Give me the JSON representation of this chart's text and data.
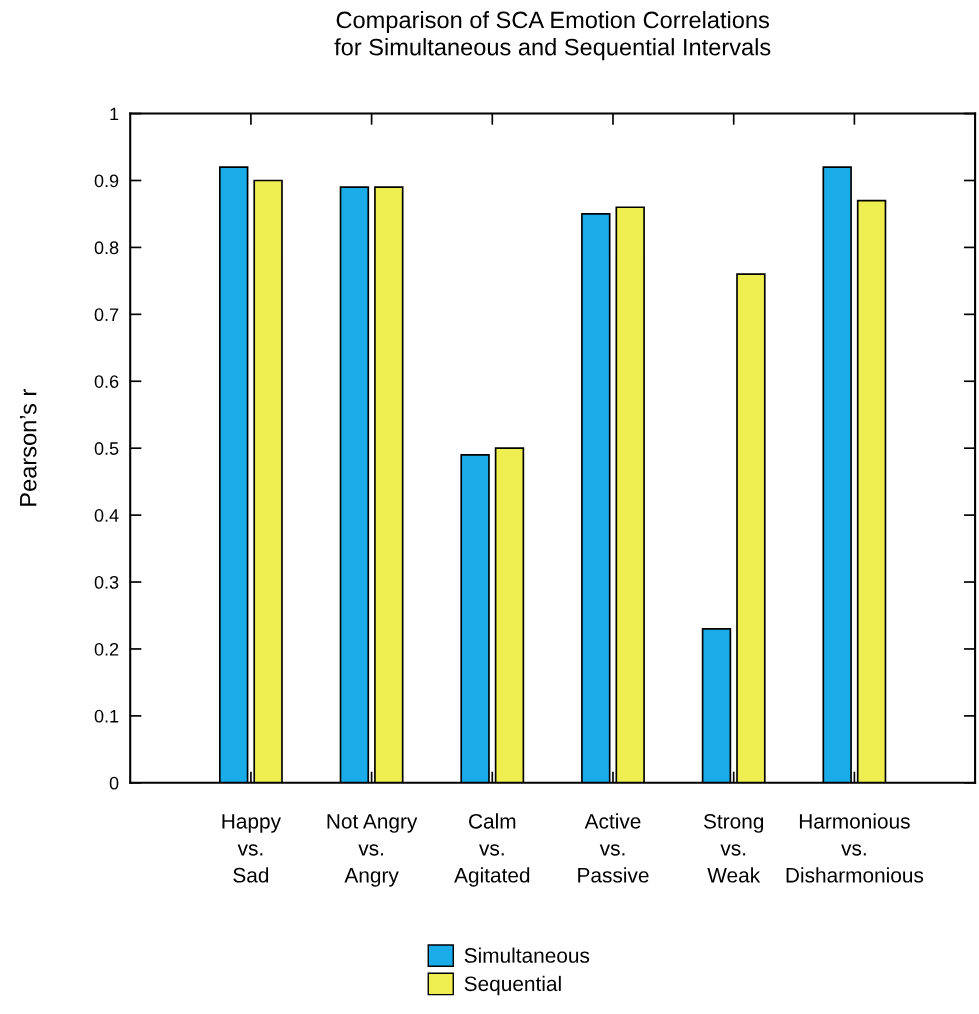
{
  "chart_data": {
    "type": "bar",
    "title": "Comparison of SCA Emotion Correlations\nfor Simultaneous and Sequential Intervals",
    "ylabel": "Pearson’s r",
    "categories": [
      "Happy\nvs.\nSad",
      "Not Angry\nvs.\nAngry",
      "Calm\nvs.\nAgitated",
      "Active\nvs.\nPassive",
      "Strong\nvs.\nWeak",
      "Harmonious\nvs.\nDisharmonious"
    ],
    "series": [
      {
        "name": "Simultaneous",
        "color": "#1aace8",
        "values": [
          0.92,
          0.89,
          0.49,
          0.85,
          0.23,
          0.92
        ]
      },
      {
        "name": "Sequential",
        "color": "#eeee50",
        "values": [
          0.9,
          0.89,
          0.5,
          0.86,
          0.76,
          0.87
        ]
      }
    ],
    "ylim": [
      0,
      1
    ],
    "yticks": [
      0,
      0.1,
      0.2,
      0.3,
      0.4,
      0.5,
      0.6,
      0.7,
      0.8,
      0.9,
      1
    ],
    "grid": false,
    "legend": "bottom"
  }
}
